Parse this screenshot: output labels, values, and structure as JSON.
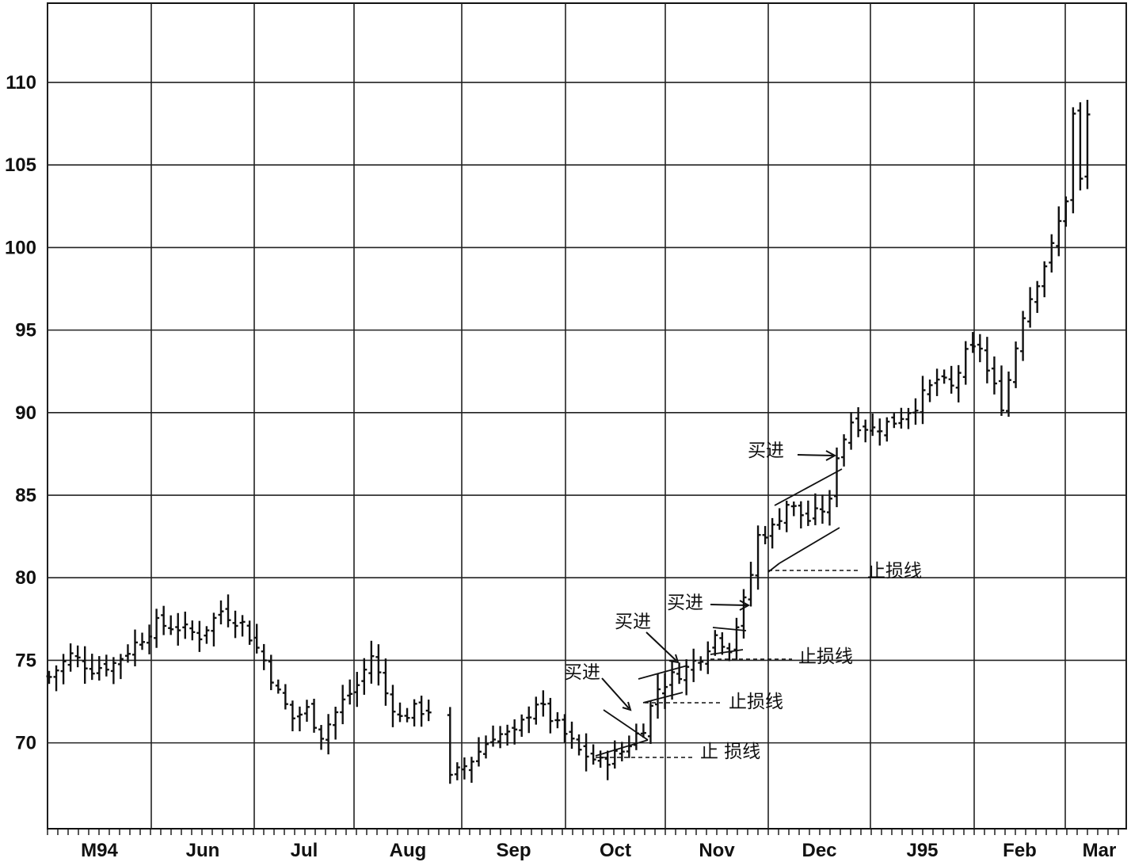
{
  "chart_data": {
    "type": "ohlc",
    "title": "",
    "xlabel": "",
    "ylabel": "",
    "ylim": [
      64.8,
      114.8
    ],
    "y_ticks": [
      70,
      75,
      80,
      85,
      90,
      95,
      100,
      105,
      110
    ],
    "y_tick_labels": [
      "70",
      "75",
      "80",
      "85",
      "90",
      "95",
      "100",
      "105",
      "110"
    ],
    "x_tick_labels": [
      "M94",
      "Jun",
      "Jul",
      "Aug",
      "Sep",
      "Oct",
      "Nov",
      "Dec",
      "J95",
      "Feb",
      "Mar"
    ],
    "grid": true,
    "legend": "none",
    "price_path": [
      [
        0,
        74.0
      ],
      [
        3,
        75.3
      ],
      [
        6,
        74.5
      ],
      [
        9,
        74.8
      ],
      [
        12,
        76.0
      ],
      [
        15,
        77.2
      ],
      [
        18,
        77.0
      ],
      [
        21,
        76.5
      ],
      [
        24,
        78.0
      ],
      [
        27,
        77.2
      ],
      [
        30,
        75.0
      ],
      [
        32,
        73.0
      ],
      [
        34,
        71.5
      ],
      [
        36,
        72.0
      ],
      [
        38,
        70.5
      ],
      [
        41,
        72.5
      ],
      [
        43,
        73.5
      ],
      [
        45,
        75.3
      ],
      [
        47,
        73.0
      ],
      [
        49,
        71.5
      ],
      [
        51,
        72.0
      ],
      [
        53,
        72.0
      ],
      [
        56,
        67.8
      ],
      [
        59,
        69.0
      ],
      [
        62,
        70.5
      ],
      [
        65,
        70.5
      ],
      [
        68,
        72.5
      ],
      [
        71,
        71.0
      ],
      [
        74,
        69.5
      ],
      [
        77,
        68.8
      ],
      [
        80,
        69.5
      ],
      [
        83,
        71.0
      ],
      [
        85,
        73.3
      ],
      [
        87,
        74.0
      ],
      [
        89,
        74.5
      ],
      [
        91,
        75.3
      ],
      [
        93,
        76.5
      ],
      [
        95,
        75.8
      ],
      [
        97,
        78.5
      ],
      [
        98,
        80.2
      ],
      [
        99,
        82.5
      ],
      [
        101,
        83.0
      ],
      [
        103,
        84.5
      ],
      [
        106,
        83.5
      ],
      [
        109,
        84.5
      ],
      [
        110,
        87.5
      ],
      [
        112,
        89.5
      ],
      [
        115,
        89.0
      ],
      [
        118,
        89.5
      ],
      [
        121,
        90.5
      ],
      [
        124,
        92.0
      ],
      [
        126,
        91.5
      ],
      [
        128,
        93.5
      ],
      [
        130,
        94.0
      ],
      [
        131,
        92.5
      ],
      [
        133,
        90.5
      ],
      [
        134,
        92.0
      ],
      [
        136,
        96.0
      ],
      [
        138,
        98.0
      ],
      [
        140,
        100.0
      ],
      [
        142,
        103.0
      ],
      [
        143,
        108.0
      ],
      [
        144,
        104.0
      ],
      [
        145,
        108.0
      ]
    ],
    "annotations": {
      "buy_label": "买进",
      "stop_label": "止损线",
      "buy_signals": [
        {
          "label": "买进",
          "price": 70.8
        },
        {
          "label": "买进",
          "price": 75.1
        },
        {
          "label": "买进",
          "price": 78.5
        },
        {
          "label": "买进",
          "price": 88.0
        }
      ],
      "stop_lines": [
        {
          "label": "止 损线",
          "price": 69.4
        },
        {
          "label": "止损线",
          "price": 72.7
        },
        {
          "label": "止损线",
          "price": 75.2
        },
        {
          "label": "止损线",
          "price": 80.6
        }
      ],
      "patterns": [
        {
          "type": "pennant",
          "near_price": 71.0
        },
        {
          "type": "flag",
          "near_price": 73.8
        },
        {
          "type": "pennant",
          "near_price": 76.0
        },
        {
          "type": "flag",
          "near_price": 84.0
        }
      ]
    }
  }
}
